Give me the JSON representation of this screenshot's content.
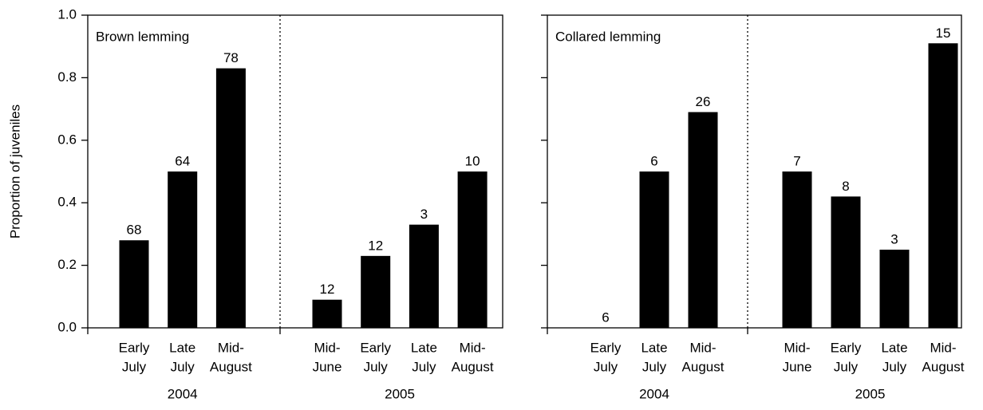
{
  "chart_data": [
    {
      "type": "bar",
      "title": "Brown lemming",
      "ylabel": "Proportion of juveniles",
      "ylim": [
        0,
        1
      ],
      "yticks": [
        {
          "value": 0,
          "label": "0.0"
        },
        0.2,
        0.4,
        0.6,
        0.8,
        {
          "value": 1,
          "label": "1.0"
        }
      ],
      "show_tick_labels": true,
      "color": "#000000",
      "groups": [
        {
          "name": "2004",
          "categories": [
            [
              "Early",
              "July"
            ],
            [
              "Late",
              "July"
            ],
            [
              "Mid-",
              "August"
            ]
          ],
          "values": [
            0.28,
            0.5,
            0.83
          ],
          "sample_sizes": [
            "68",
            "64",
            "78"
          ]
        },
        {
          "name": "2005",
          "categories": [
            [
              "Mid-",
              "June"
            ],
            [
              "Early",
              "July"
            ],
            [
              "Late",
              "July"
            ],
            [
              "Mid-",
              "August"
            ]
          ],
          "values": [
            0.09,
            0.23,
            0.33,
            0.5
          ],
          "sample_sizes": [
            "12",
            "12",
            "3",
            "10"
          ]
        }
      ]
    },
    {
      "type": "bar",
      "title": "Collared lemming",
      "ylim": [
        0,
        1
      ],
      "yticks": [
        0,
        0.2,
        0.4,
        0.6,
        0.8,
        1
      ],
      "show_tick_labels": false,
      "color": "#000000",
      "groups": [
        {
          "name": "2004",
          "categories": [
            [
              "Early",
              "July"
            ],
            [
              "Late",
              "July"
            ],
            [
              "Mid-",
              "August"
            ]
          ],
          "values": [
            0,
            0.5,
            0.69
          ],
          "sample_sizes": [
            "6",
            "6",
            "26"
          ]
        },
        {
          "name": "2005",
          "categories": [
            [
              "Mid-",
              "June"
            ],
            [
              "Early",
              "July"
            ],
            [
              "Late",
              "July"
            ],
            [
              "Mid-",
              "August"
            ]
          ],
          "values": [
            0.5,
            0.42,
            0.25,
            0.91
          ],
          "sample_sizes": [
            "7",
            "8",
            "3",
            "15"
          ]
        }
      ]
    }
  ]
}
